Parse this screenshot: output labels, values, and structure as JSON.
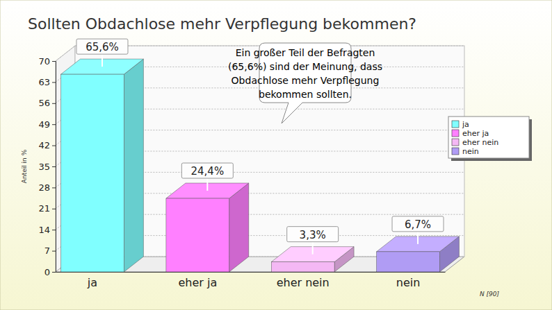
{
  "chart_data": {
    "type": "bar",
    "title": "Sollten Obdachlose mehr Verpflegung bekommen?",
    "y_label": "Anteil in %",
    "categories": [
      "ja",
      "eher ja",
      "eher nein",
      "nein"
    ],
    "values": [
      65.6,
      24.4,
      3.3,
      6.7
    ],
    "value_labels": [
      "65,6%",
      "24,4%",
      "3,3%",
      "6,7%"
    ],
    "colors": [
      "#80ffff",
      "#ff80ff",
      "#f4b8f4",
      "#b09cf4"
    ],
    "ylim": [
      0,
      70
    ],
    "yticks": [
      0,
      7,
      14,
      21,
      28,
      35,
      42,
      49,
      56,
      63,
      70
    ],
    "grid": true,
    "data_labels": true,
    "legend": "right",
    "annotation": [
      "Ein großer Teil der Befragten",
      "(65,6%) sind der Meinung, dass",
      "Obdachlose mehr Verpflegung",
      "bekommen sollten."
    ],
    "note": "N [90]"
  }
}
